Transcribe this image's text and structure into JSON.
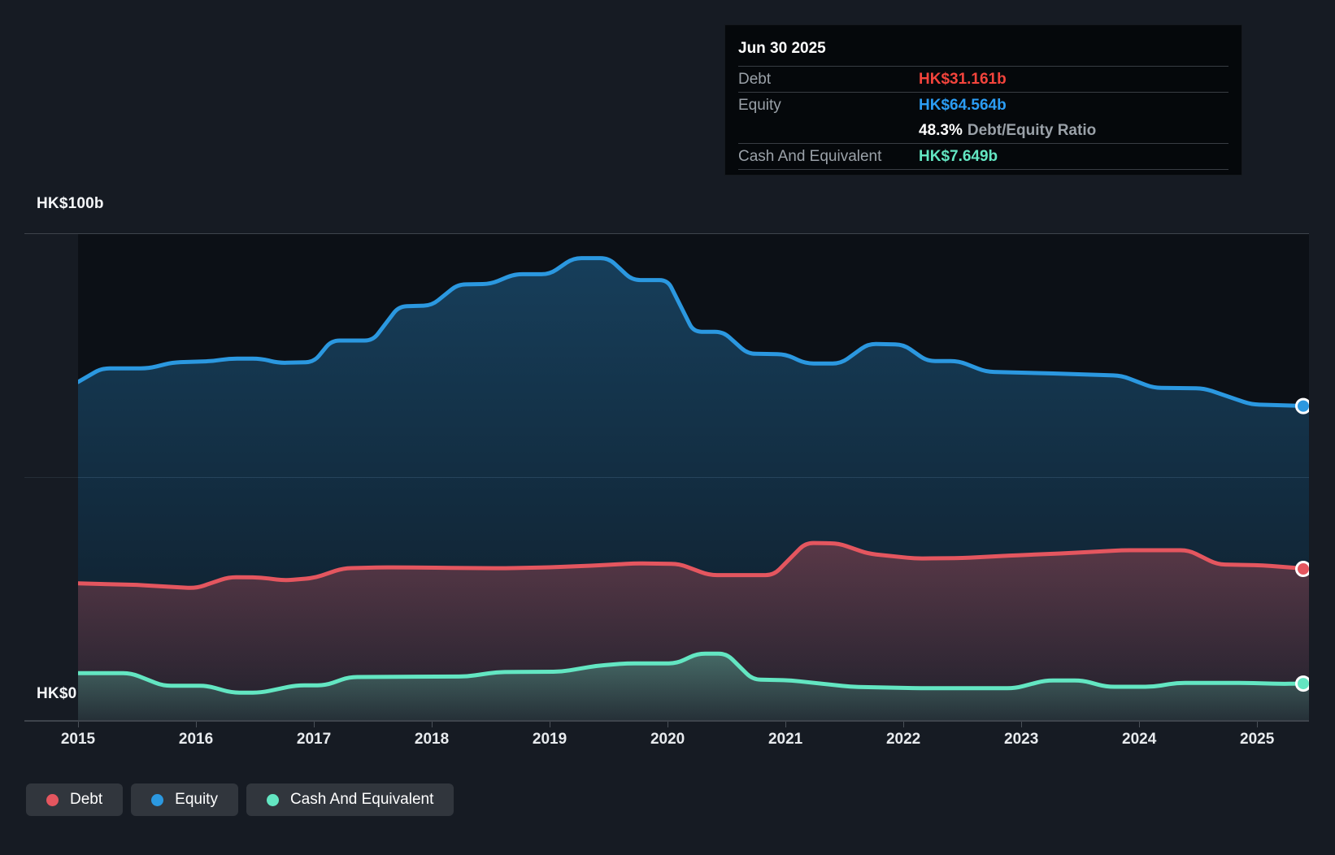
{
  "tooltip": {
    "date": "Jun 30 2025",
    "debt_label": "Debt",
    "debt_value": "HK$31.161b",
    "equity_label": "Equity",
    "equity_value": "HK$64.564b",
    "ratio_value": "48.3%",
    "ratio_label": "Debt/Equity Ratio",
    "cash_label": "Cash And Equivalent",
    "cash_value": "HK$7.649b"
  },
  "colors": {
    "debt": "#e4565f",
    "equity": "#2b98e0",
    "cash": "#63e6c2",
    "debt_value_text": "#f4443c",
    "equity_value_text": "#2b9df4",
    "cash_value_text": "#63e6c2"
  },
  "axis": {
    "y_top_label": "HK$100b",
    "y_bottom_label": "HK$0"
  },
  "legend": [
    {
      "label": "Debt",
      "color": "#e4565f"
    },
    {
      "label": "Equity",
      "color": "#2b98e0"
    },
    {
      "label": "Cash And Equivalent",
      "color": "#63e6c2"
    }
  ],
  "chart_data": {
    "type": "area",
    "unit": "HK$ billions",
    "x_range": [
      2015,
      2025.44
    ],
    "y_range": [
      0,
      100
    ],
    "x_ticks": [
      2015,
      2016,
      2017,
      2018,
      2019,
      2020,
      2021,
      2022,
      2023,
      2024,
      2025
    ],
    "y_tick_labels": [
      "HK$0",
      "HK$100b"
    ],
    "grid": "horizontal",
    "legend_position": "bottom-left",
    "series": [
      {
        "name": "Equity",
        "color": "#2b98e0",
        "final_label": "HK$64.564b",
        "points": [
          [
            2015.0,
            69.5
          ],
          [
            2015.2,
            72.3
          ],
          [
            2015.6,
            72.3
          ],
          [
            2015.8,
            73.5
          ],
          [
            2016.15,
            73.8
          ],
          [
            2016.28,
            74.3
          ],
          [
            2016.55,
            74.3
          ],
          [
            2016.7,
            73.4
          ],
          [
            2017.0,
            73.6
          ],
          [
            2017.15,
            78.0
          ],
          [
            2017.5,
            78.0
          ],
          [
            2017.72,
            85.0
          ],
          [
            2018.0,
            85.2
          ],
          [
            2018.22,
            89.5
          ],
          [
            2018.5,
            89.6
          ],
          [
            2018.7,
            91.6
          ],
          [
            2019.0,
            91.6
          ],
          [
            2019.2,
            94.9
          ],
          [
            2019.5,
            94.9
          ],
          [
            2019.7,
            90.4
          ],
          [
            2020.0,
            90.4
          ],
          [
            2020.22,
            79.8
          ],
          [
            2020.47,
            79.8
          ],
          [
            2020.68,
            75.3
          ],
          [
            2021.0,
            75.2
          ],
          [
            2021.17,
            73.3
          ],
          [
            2021.47,
            73.3
          ],
          [
            2021.7,
            77.3
          ],
          [
            2022.0,
            77.2
          ],
          [
            2022.2,
            73.8
          ],
          [
            2022.47,
            73.8
          ],
          [
            2022.7,
            71.6
          ],
          [
            2023.2,
            71.3
          ],
          [
            2023.85,
            70.8
          ],
          [
            2024.12,
            68.3
          ],
          [
            2024.55,
            68.2
          ],
          [
            2024.95,
            64.9
          ],
          [
            2025.44,
            64.564
          ]
        ]
      },
      {
        "name": "Debt",
        "color": "#e4565f",
        "final_label": "HK$31.161b",
        "points": [
          [
            2015.0,
            28.2
          ],
          [
            2015.5,
            27.9
          ],
          [
            2016.0,
            27.2
          ],
          [
            2016.28,
            29.5
          ],
          [
            2016.55,
            29.4
          ],
          [
            2016.75,
            28.8
          ],
          [
            2017.0,
            29.3
          ],
          [
            2017.25,
            31.3
          ],
          [
            2017.6,
            31.5
          ],
          [
            2018.1,
            31.4
          ],
          [
            2018.6,
            31.3
          ],
          [
            2019.0,
            31.5
          ],
          [
            2019.42,
            31.9
          ],
          [
            2019.72,
            32.3
          ],
          [
            2020.1,
            32.2
          ],
          [
            2020.35,
            29.9
          ],
          [
            2020.9,
            29.9
          ],
          [
            2021.17,
            36.5
          ],
          [
            2021.45,
            36.4
          ],
          [
            2021.7,
            34.3
          ],
          [
            2022.1,
            33.3
          ],
          [
            2022.5,
            33.4
          ],
          [
            2022.9,
            33.9
          ],
          [
            2023.4,
            34.4
          ],
          [
            2023.85,
            35.0
          ],
          [
            2024.42,
            35.0
          ],
          [
            2024.66,
            32.1
          ],
          [
            2025.05,
            31.9
          ],
          [
            2025.44,
            31.161
          ]
        ]
      },
      {
        "name": "Cash And Equivalent",
        "color": "#63e6c2",
        "final_label": "HK$7.649b",
        "points": [
          [
            2015.0,
            9.8
          ],
          [
            2015.45,
            9.8
          ],
          [
            2015.72,
            7.2
          ],
          [
            2016.1,
            7.2
          ],
          [
            2016.3,
            5.8
          ],
          [
            2016.55,
            5.8
          ],
          [
            2016.85,
            7.3
          ],
          [
            2017.1,
            7.3
          ],
          [
            2017.3,
            9.0
          ],
          [
            2018.3,
            9.1
          ],
          [
            2018.55,
            10.0
          ],
          [
            2019.1,
            10.1
          ],
          [
            2019.4,
            11.3
          ],
          [
            2019.65,
            11.8
          ],
          [
            2020.08,
            11.8
          ],
          [
            2020.25,
            13.8
          ],
          [
            2020.5,
            13.8
          ],
          [
            2020.72,
            8.5
          ],
          [
            2021.05,
            8.3
          ],
          [
            2021.55,
            7.0
          ],
          [
            2022.15,
            6.7
          ],
          [
            2022.95,
            6.7
          ],
          [
            2023.2,
            8.3
          ],
          [
            2023.52,
            8.3
          ],
          [
            2023.72,
            7.0
          ],
          [
            2024.12,
            7.0
          ],
          [
            2024.32,
            7.8
          ],
          [
            2024.9,
            7.8
          ],
          [
            2025.2,
            7.6
          ],
          [
            2025.44,
            7.649
          ]
        ]
      }
    ]
  }
}
